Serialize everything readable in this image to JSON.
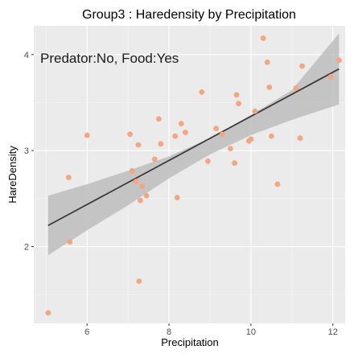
{
  "chart_data": {
    "type": "scatter",
    "title": "Group3 : Haredensity by Precipitation",
    "xlabel": "Precipitation",
    "ylabel": "HareDensity",
    "annotation": "Predator:No, Food:Yes",
    "xlim": [
      4.7,
      12.3
    ],
    "ylim": [
      1.2,
      4.3
    ],
    "x_ticks": [
      6,
      8,
      10,
      12
    ],
    "y_ticks": [
      2,
      3,
      4
    ],
    "grid": true,
    "point_color": "#f4a582",
    "line_color": "#3b3b3b",
    "band_color": "#bdbdbd",
    "panel_background": "#ebebeb",
    "points": [
      {
        "x": 5.05,
        "y": 1.31
      },
      {
        "x": 5.55,
        "y": 2.72
      },
      {
        "x": 5.58,
        "y": 2.05
      },
      {
        "x": 6.0,
        "y": 3.16
      },
      {
        "x": 7.05,
        "y": 3.17
      },
      {
        "x": 7.1,
        "y": 2.79
      },
      {
        "x": 7.2,
        "y": 2.68
      },
      {
        "x": 7.25,
        "y": 3.06
      },
      {
        "x": 7.27,
        "y": 1.64
      },
      {
        "x": 7.3,
        "y": 2.48
      },
      {
        "x": 7.35,
        "y": 2.63
      },
      {
        "x": 7.45,
        "y": 2.53
      },
      {
        "x": 7.65,
        "y": 2.91
      },
      {
        "x": 7.75,
        "y": 3.33
      },
      {
        "x": 7.8,
        "y": 3.07
      },
      {
        "x": 8.15,
        "y": 3.15
      },
      {
        "x": 8.2,
        "y": 2.51
      },
      {
        "x": 8.3,
        "y": 3.28
      },
      {
        "x": 8.4,
        "y": 3.19
      },
      {
        "x": 8.8,
        "y": 3.61
      },
      {
        "x": 8.95,
        "y": 2.89
      },
      {
        "x": 9.15,
        "y": 3.23
      },
      {
        "x": 9.3,
        "y": 3.17
      },
      {
        "x": 9.5,
        "y": 3.02
      },
      {
        "x": 9.6,
        "y": 2.87
      },
      {
        "x": 9.65,
        "y": 3.58
      },
      {
        "x": 9.7,
        "y": 3.49
      },
      {
        "x": 9.95,
        "y": 3.1
      },
      {
        "x": 10.0,
        "y": 3.12
      },
      {
        "x": 10.1,
        "y": 3.41
      },
      {
        "x": 10.3,
        "y": 4.17
      },
      {
        "x": 10.4,
        "y": 3.92
      },
      {
        "x": 10.45,
        "y": 3.66
      },
      {
        "x": 10.5,
        "y": 3.15
      },
      {
        "x": 10.65,
        "y": 2.65
      },
      {
        "x": 11.1,
        "y": 3.65
      },
      {
        "x": 11.2,
        "y": 3.13
      },
      {
        "x": 11.25,
        "y": 3.88
      },
      {
        "x": 11.95,
        "y": 3.77
      },
      {
        "x": 12.15,
        "y": 3.94
      }
    ],
    "fit_line": {
      "x": [
        5.05,
        12.15
      ],
      "y": [
        2.22,
        3.85
      ]
    },
    "confidence_band": {
      "x": [
        5.05,
        6.0,
        7.0,
        8.0,
        9.0,
        10.0,
        11.0,
        12.15
      ],
      "lower": [
        1.91,
        2.17,
        2.43,
        2.71,
        2.96,
        3.16,
        3.32,
        3.48
      ],
      "upper": [
        2.53,
        2.65,
        2.79,
        2.94,
        3.13,
        3.37,
        3.63,
        4.22
      ]
    }
  }
}
